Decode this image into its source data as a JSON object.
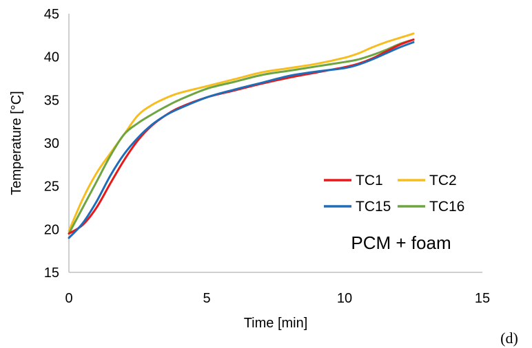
{
  "chart_data": {
    "type": "line",
    "title": "",
    "xlabel": "Time [min]",
    "ylabel": "Temperature [°C]",
    "xlim": [
      0,
      15
    ],
    "ylim": [
      15,
      45
    ],
    "xticks": [
      0,
      5,
      10,
      15
    ],
    "yticks": [
      15,
      20,
      25,
      30,
      35,
      40,
      45
    ],
    "grid": false,
    "legend_position": "right-center",
    "annotation": "PCM + foam",
    "panel_label": "(d)",
    "series": [
      {
        "name": "TC1",
        "color": "#e8191b",
        "x": [
          0,
          0.5,
          1,
          1.5,
          2,
          2.5,
          3,
          3.5,
          4,
          5,
          6,
          7,
          8,
          9,
          10,
          10.5,
          11,
          11.5,
          12,
          12.5
        ],
        "y": [
          19.5,
          20.5,
          22.5,
          25.3,
          28.0,
          30.3,
          32.0,
          33.2,
          34.1,
          35.3,
          36.1,
          36.9,
          37.6,
          38.2,
          38.8,
          39.2,
          39.8,
          40.6,
          41.4,
          42.0
        ]
      },
      {
        "name": "TC2",
        "color": "#f7bd1f",
        "x": [
          0,
          0.5,
          1,
          1.5,
          2,
          2.5,
          3,
          3.5,
          4,
          5,
          6,
          7,
          8,
          9,
          10,
          10.5,
          11,
          11.5,
          12,
          12.5
        ],
        "y": [
          19.8,
          23.5,
          26.5,
          28.8,
          31.0,
          33.2,
          34.4,
          35.2,
          35.8,
          36.6,
          37.4,
          38.2,
          38.7,
          39.2,
          39.9,
          40.4,
          41.1,
          41.7,
          42.2,
          42.7
        ]
      },
      {
        "name": "TC15",
        "color": "#1f6cb8",
        "x": [
          0,
          0.5,
          1,
          1.5,
          2,
          2.5,
          3,
          3.5,
          4,
          5,
          6,
          7,
          8,
          9,
          10,
          10.5,
          11,
          11.5,
          12,
          12.5
        ],
        "y": [
          19.0,
          20.7,
          23.2,
          26.2,
          28.7,
          30.6,
          32.1,
          33.2,
          34.0,
          35.3,
          36.2,
          37.0,
          37.8,
          38.3,
          38.7,
          39.1,
          39.7,
          40.4,
          41.1,
          41.7
        ]
      },
      {
        "name": "TC16",
        "color": "#6da540",
        "x": [
          0,
          0.5,
          1,
          1.5,
          2,
          2.5,
          3,
          3.5,
          4,
          5,
          6,
          7,
          8,
          9,
          10,
          10.5,
          11,
          11.5,
          12,
          12.5
        ],
        "y": [
          19.5,
          22.5,
          25.5,
          28.5,
          31.0,
          32.3,
          33.3,
          34.2,
          35.0,
          36.3,
          37.1,
          37.9,
          38.4,
          38.9,
          39.4,
          39.7,
          40.2,
          40.8,
          41.5,
          42.0
        ]
      }
    ]
  }
}
